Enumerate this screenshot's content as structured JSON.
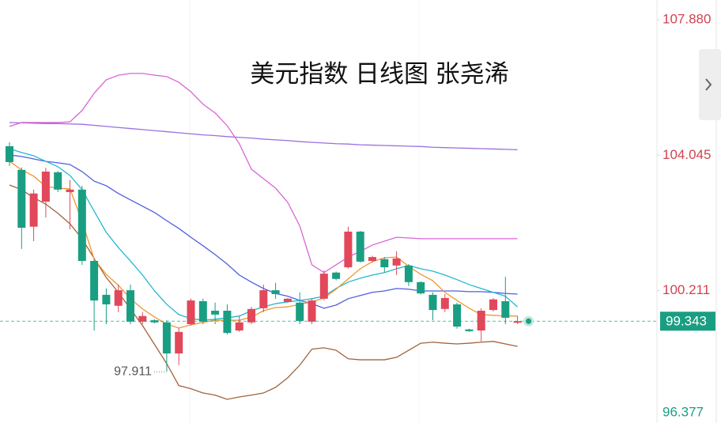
{
  "chart_data": {
    "type": "candlestick",
    "title": "美元指数 日线图 张尧浠",
    "up_color": "#e2475a",
    "down_color": "#1a9e82",
    "open": [
      104.3,
      103.63,
      102.02,
      102.73,
      103.56,
      103.0,
      103.07,
      101.05,
      100.09,
      99.78,
      100.22,
      99.33,
      99.37,
      99.31,
      98.43,
      99.26,
      99.91,
      99.64,
      99.64,
      99.08,
      99.31,
      99.71,
      100.22,
      99.89,
      99.87,
      99.33,
      99.98,
      100.72,
      100.87,
      101.88,
      101.05,
      101.1,
      100.92,
      100.92,
      100.45,
      100.09,
      99.69,
      99.82,
      99.11,
      99.08,
      99.66,
      99.91,
      99.3
    ],
    "high": [
      104.41,
      103.7,
      103.07,
      103.69,
      103.6,
      103.34,
      103.18,
      101.1,
      100.27,
      100.38,
      100.38,
      99.6,
      99.4,
      99.37,
      99.15,
      99.98,
      99.98,
      99.87,
      99.82,
      99.49,
      99.75,
      100.38,
      100.43,
      100.0,
      100.16,
      100.0,
      100.78,
      100.75,
      102.02,
      101.9,
      101.2,
      101.16,
      101.32,
      100.96,
      100.47,
      100.16,
      100.11,
      99.87,
      99.13,
      99.71,
      100.0,
      100.6,
      99.49
    ],
    "low": [
      103.74,
      101.39,
      101.61,
      102.28,
      103.0,
      101.95,
      100.94,
      99.08,
      99.26,
      99.6,
      99.26,
      99.26,
      99.28,
      97.911,
      98.1,
      99.22,
      99.26,
      99.26,
      98.97,
      99.04,
      99.26,
      99.6,
      99.98,
      99.87,
      99.26,
      99.26,
      99.93,
      100.5,
      100.83,
      101.0,
      101.0,
      100.72,
      100.65,
      100.34,
      100.1,
      99.37,
      99.6,
      99.13,
      99.04,
      98.77,
      99.62,
      99.26,
      99.26
    ],
    "close": [
      103.85,
      101.99,
      102.96,
      103.58,
      103.07,
      103.07,
      101.05,
      99.93,
      99.82,
      100.22,
      99.33,
      99.49,
      99.31,
      98.43,
      99.04,
      99.93,
      99.33,
      99.53,
      99.01,
      99.31,
      99.69,
      100.22,
      100.11,
      99.98,
      99.35,
      99.93,
      100.69,
      100.54,
      101.88,
      101.03,
      101.16,
      100.87,
      101.12,
      100.45,
      100.13,
      99.66,
      100.0,
      99.19,
      99.06,
      99.64,
      99.96,
      99.44,
      99.343
    ],
    "lines": [
      {
        "color": "#9b6fe0",
        "values": [
          104.97,
          104.96,
          104.95,
          104.94,
          104.94,
          104.93,
          104.92,
          104.89,
          104.86,
          104.83,
          104.8,
          104.77,
          104.74,
          104.71,
          104.68,
          104.65,
          104.62,
          104.6,
          104.57,
          104.55,
          104.53,
          104.5,
          104.48,
          104.46,
          104.43,
          104.41,
          104.39,
          104.37,
          104.36,
          104.34,
          104.33,
          104.32,
          104.31,
          104.3,
          104.29,
          104.27,
          104.26,
          104.25,
          104.24,
          104.23,
          104.22,
          104.21,
          104.2
        ]
      },
      {
        "color": "#d867d6",
        "values": [
          104.86,
          104.97,
          104.97,
          104.97,
          104.97,
          104.99,
          105.31,
          105.8,
          106.18,
          106.31,
          106.36,
          106.36,
          106.31,
          106.27,
          106.11,
          105.84,
          105.49,
          105.24,
          104.88,
          104.37,
          103.65,
          103.38,
          103.11,
          102.71,
          102.04,
          100.94,
          100.72,
          100.94,
          101.16,
          101.32,
          101.5,
          101.61,
          101.72,
          101.7,
          101.68,
          101.68,
          101.68,
          101.68,
          101.68,
          101.68,
          101.68,
          101.68,
          101.68
        ]
      },
      {
        "color": "#a0643c",
        "values": [
          103.2,
          103.07,
          102.84,
          102.66,
          102.4,
          102.1,
          101.68,
          101.12,
          100.58,
          100.16,
          99.69,
          99.22,
          98.68,
          98.14,
          97.52,
          97.43,
          97.31,
          97.25,
          97.13,
          97.2,
          97.25,
          97.31,
          97.47,
          97.74,
          98.1,
          98.55,
          98.59,
          98.52,
          98.28,
          98.25,
          98.25,
          98.25,
          98.32,
          98.52,
          98.72,
          98.75,
          98.72,
          98.7,
          98.72,
          98.75,
          98.77,
          98.7,
          98.63
        ]
      },
      {
        "color": "#4f5ee0",
        "values": [
          104.05,
          104.01,
          103.94,
          103.87,
          103.83,
          103.78,
          103.58,
          103.31,
          103.18,
          102.96,
          102.78,
          102.6,
          102.42,
          102.19,
          101.97,
          101.72,
          101.48,
          101.23,
          100.96,
          100.65,
          100.45,
          100.27,
          100.13,
          100.05,
          99.93,
          99.84,
          99.71,
          99.8,
          99.98,
          100.07,
          100.16,
          100.2,
          100.27,
          100.25,
          100.2,
          100.2,
          100.2,
          100.2,
          100.18,
          100.18,
          100.16,
          100.13,
          100.11
        ]
      },
      {
        "color": "#22b8d0",
        "values": [
          104.23,
          104.12,
          104.03,
          103.87,
          103.72,
          103.47,
          103.07,
          102.46,
          101.86,
          101.43,
          101.05,
          100.65,
          100.2,
          99.82,
          99.53,
          99.42,
          99.37,
          99.4,
          99.44,
          99.49,
          99.64,
          99.75,
          99.84,
          99.89,
          99.93,
          99.98,
          100.05,
          100.27,
          100.45,
          100.56,
          100.65,
          100.72,
          100.83,
          100.92,
          100.83,
          100.76,
          100.65,
          100.52,
          100.38,
          100.27,
          100.16,
          100.05,
          99.75
        ]
      },
      {
        "color": "#f0962e",
        "values": [
          103.87,
          103.63,
          103.45,
          103.16,
          103.11,
          103.09,
          102.17,
          101.1,
          100.67,
          100.36,
          99.98,
          99.69,
          99.46,
          99.26,
          99.15,
          99.24,
          99.31,
          99.37,
          99.37,
          99.37,
          99.46,
          99.64,
          99.73,
          99.75,
          99.82,
          99.89,
          100.0,
          100.25,
          100.54,
          100.83,
          101.03,
          101.14,
          101.16,
          100.9,
          100.67,
          100.49,
          100.16,
          99.93,
          99.71,
          99.53,
          99.51,
          99.49,
          99.49
        ]
      }
    ],
    "ylim": [
      96.46,
      108.44
    ],
    "yticks": [
      {
        "value": 107.88,
        "label": "107.880"
      },
      104.045,
      100.211,
      96.377
    ],
    "ytick_colors": [
      "#d0434f",
      "#d0434f",
      "#d0434f",
      "#1a9e82"
    ]
  }
}
